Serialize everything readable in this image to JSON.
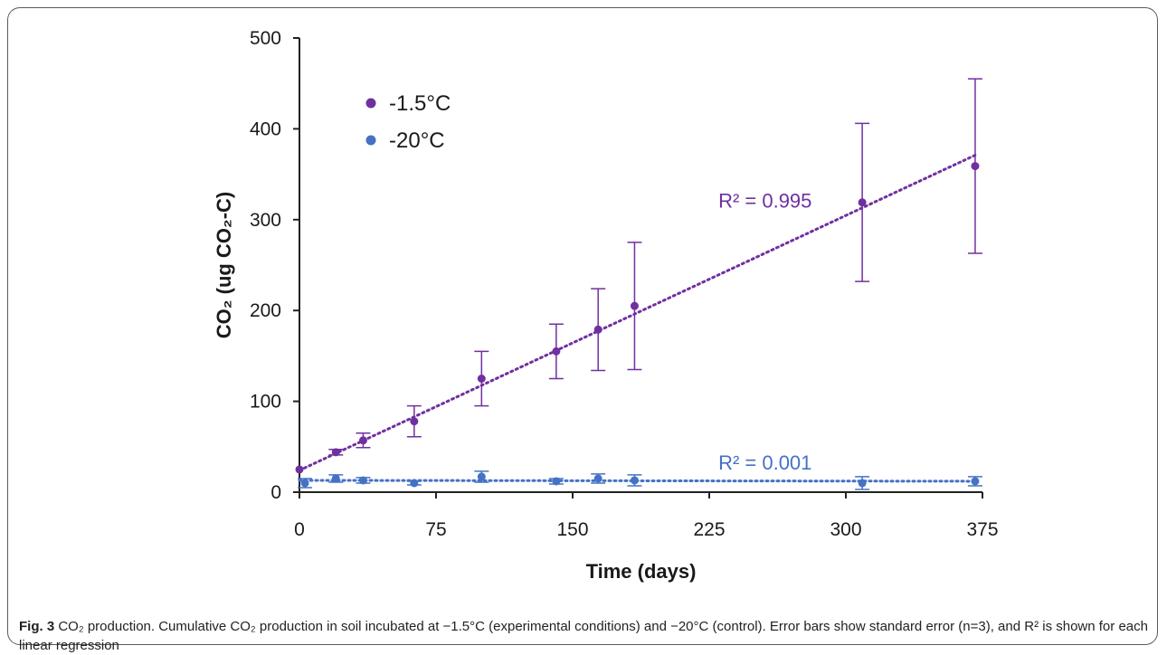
{
  "chart_data": {
    "type": "scatter",
    "xlabel": "Time (days)",
    "ylabel": "CO₂ (ug CO₂-C)",
    "xlim": [
      0,
      375
    ],
    "ylim": [
      0,
      500
    ],
    "xticks": [
      0,
      75,
      150,
      225,
      300,
      375
    ],
    "yticks": [
      0,
      100,
      200,
      300,
      400,
      500
    ],
    "grid": false,
    "legend_position": "top-left",
    "series": [
      {
        "name": "-1.5°C",
        "color": "#7030a0",
        "x": [
          0,
          20,
          35,
          63,
          100,
          141,
          164,
          184,
          309,
          371
        ],
        "y": [
          25,
          44,
          57,
          78,
          125,
          155,
          179,
          205,
          319,
          359
        ],
        "err": [
          0,
          3,
          8,
          17,
          30,
          30,
          45,
          70,
          87,
          96
        ],
        "trend": {
          "x1": 0,
          "y1": 24,
          "x2": 371,
          "y2": 371
        },
        "r2_label": "R² = 0.995",
        "r2_pos": [
          230,
          313
        ]
      },
      {
        "name": "-20°C",
        "color": "#4472c4",
        "x": [
          3,
          20,
          35,
          63,
          100,
          141,
          164,
          184,
          309,
          371
        ],
        "y": [
          10,
          15,
          13,
          10,
          17,
          12,
          15,
          13,
          10,
          12
        ],
        "err": [
          5,
          4,
          3,
          2,
          6,
          3,
          5,
          6,
          7,
          5
        ],
        "trend": {
          "x1": 0,
          "y1": 13,
          "x2": 371,
          "y2": 12
        },
        "r2_label": "R² = 0.001",
        "r2_pos": [
          230,
          25
        ]
      }
    ]
  },
  "caption": {
    "fig_label": "Fig. 3",
    "text": " CO₂ production. Cumulative CO₂ production in soil incubated at −1.5°C (experimental conditions) and −20°C (control). Error bars show standard error (n=3), and R² is shown for each linear regression"
  }
}
